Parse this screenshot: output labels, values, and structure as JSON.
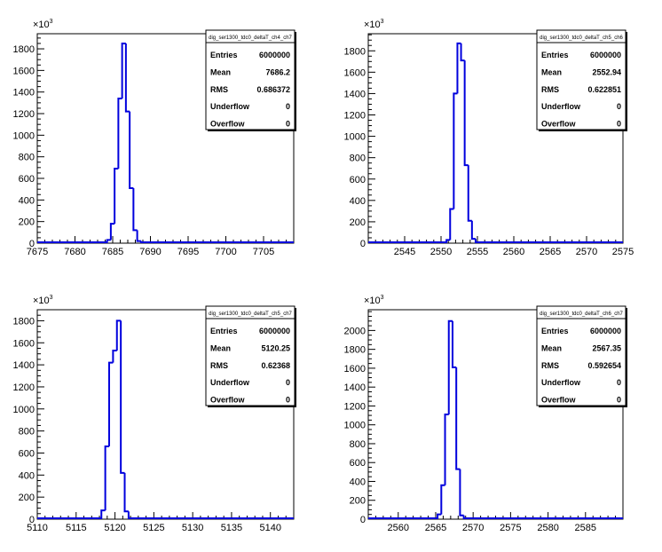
{
  "chart_data": [
    {
      "type": "histogram",
      "stats": {
        "title": "dig_ser1300_tdc0_deltaT_ch4_ch7",
        "rows": [
          {
            "label": "Entries",
            "value": "6000000"
          },
          {
            "label": "Mean",
            "value": "7686.2"
          },
          {
            "label": "RMS",
            "value": "0.686372"
          },
          {
            "label": "Underflow",
            "value": "0"
          },
          {
            "label": "Overflow",
            "value": "0"
          }
        ]
      },
      "y_exponent": "10",
      "y_exponent_power": "3",
      "xlim": [
        7675,
        7709
      ],
      "ylim": [
        0,
        1940
      ],
      "x_ticks": [
        7675,
        7680,
        7685,
        7690,
        7695,
        7700,
        7705
      ],
      "y_ticks": [
        0,
        200,
        400,
        600,
        800,
        1000,
        1200,
        1400,
        1600,
        1800
      ],
      "bin_width": 0.5,
      "bins": [
        {
          "x": 7684.5,
          "y": 30
        },
        {
          "x": 7685.0,
          "y": 180
        },
        {
          "x": 7685.5,
          "y": 690
        },
        {
          "x": 7686.0,
          "y": 1340
        },
        {
          "x": 7686.5,
          "y": 1850
        },
        {
          "x": 7687.0,
          "y": 1220
        },
        {
          "x": 7687.5,
          "y": 510
        },
        {
          "x": 7688.0,
          "y": 120
        },
        {
          "x": 7688.5,
          "y": 20
        }
      ]
    },
    {
      "type": "histogram",
      "stats": {
        "title": "dig_ser1300_tdc0_deltaT_ch5_ch6",
        "rows": [
          {
            "label": "Entries",
            "value": "6000000"
          },
          {
            "label": "Mean",
            "value": "2552.94"
          },
          {
            "label": "RMS",
            "value": "0.622851"
          },
          {
            "label": "Underflow",
            "value": "0"
          },
          {
            "label": "Overflow",
            "value": "0"
          }
        ]
      },
      "y_exponent": "10",
      "y_exponent_power": "3",
      "xlim": [
        2540,
        2575
      ],
      "ylim": [
        0,
        1960
      ],
      "x_ticks": [
        2545,
        2550,
        2555,
        2560,
        2565,
        2570,
        2575
      ],
      "y_ticks": [
        0,
        200,
        400,
        600,
        800,
        1000,
        1200,
        1400,
        1600,
        1800
      ],
      "bin_width": 0.5,
      "bins": [
        {
          "x": 2551.0,
          "y": 30
        },
        {
          "x": 2551.5,
          "y": 320
        },
        {
          "x": 2552.0,
          "y": 1400
        },
        {
          "x": 2552.5,
          "y": 1870
        },
        {
          "x": 2553.0,
          "y": 1710
        },
        {
          "x": 2553.5,
          "y": 730
        },
        {
          "x": 2554.0,
          "y": 210
        },
        {
          "x": 2554.5,
          "y": 40
        }
      ]
    },
    {
      "type": "histogram",
      "stats": {
        "title": "dig_ser1300_tdc0_deltaT_ch5_ch7",
        "rows": [
          {
            "label": "Entries",
            "value": "6000000"
          },
          {
            "label": "Mean",
            "value": "5120.25"
          },
          {
            "label": "RMS",
            "value": "0.62368"
          },
          {
            "label": "Underflow",
            "value": "0"
          },
          {
            "label": "Overflow",
            "value": "0"
          }
        ]
      },
      "y_exponent": "10",
      "y_exponent_power": "3",
      "xlim": [
        5110,
        5143
      ],
      "ylim": [
        0,
        1900
      ],
      "x_ticks": [
        5110,
        5115,
        5120,
        5125,
        5130,
        5135,
        5140
      ],
      "y_ticks": [
        0,
        200,
        400,
        600,
        800,
        1000,
        1200,
        1400,
        1600,
        1800
      ],
      "bin_width": 0.5,
      "bins": [
        {
          "x": 5118.5,
          "y": 80
        },
        {
          "x": 5119.0,
          "y": 660
        },
        {
          "x": 5119.5,
          "y": 1420
        },
        {
          "x": 5120.0,
          "y": 1530
        },
        {
          "x": 5120.5,
          "y": 1800
        },
        {
          "x": 5121.0,
          "y": 420
        },
        {
          "x": 5121.5,
          "y": 70
        }
      ]
    },
    {
      "type": "histogram",
      "stats": {
        "title": "dig_ser1300_tdc0_deltaT_ch6_ch7",
        "rows": [
          {
            "label": "Entries",
            "value": "6000000"
          },
          {
            "label": "Mean",
            "value": "2567.35"
          },
          {
            "label": "RMS",
            "value": "0.592654"
          },
          {
            "label": "Underflow",
            "value": "0"
          },
          {
            "label": "Overflow",
            "value": "0"
          }
        ]
      },
      "y_exponent": "10",
      "y_exponent_power": "3",
      "xlim": [
        2556,
        2590
      ],
      "ylim": [
        0,
        2220
      ],
      "x_ticks": [
        2560,
        2565,
        2570,
        2575,
        2580,
        2585
      ],
      "y_ticks": [
        0,
        200,
        400,
        600,
        800,
        1000,
        1200,
        1400,
        1600,
        1800,
        2000
      ],
      "bin_width": 0.5,
      "bins": [
        {
          "x": 2565.5,
          "y": 50
        },
        {
          "x": 2566.0,
          "y": 360
        },
        {
          "x": 2566.5,
          "y": 1110
        },
        {
          "x": 2567.0,
          "y": 2100
        },
        {
          "x": 2567.5,
          "y": 1610
        },
        {
          "x": 2568.0,
          "y": 530
        },
        {
          "x": 2568.5,
          "y": 40
        }
      ]
    }
  ],
  "colors": {
    "histogram_line": "#0000dd",
    "axis": "#000000",
    "background": "#ffffff"
  }
}
